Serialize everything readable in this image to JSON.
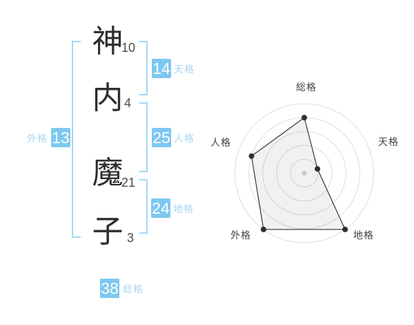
{
  "name": {
    "characters": [
      {
        "char": "神",
        "strokes": "10"
      },
      {
        "char": "内",
        "strokes": "4"
      },
      {
        "char": "魔",
        "strokes": "21"
      },
      {
        "char": "子",
        "strokes": "3"
      }
    ]
  },
  "badges": {
    "tenkaku": {
      "value": "14",
      "label": "天格"
    },
    "jinkaku": {
      "value": "25",
      "label": "人格"
    },
    "chikaku": {
      "value": "24",
      "label": "地格"
    },
    "gaikaku": {
      "value": "13",
      "label": "外格"
    },
    "soukaku": {
      "value": "38",
      "label": "総格"
    }
  },
  "colors": {
    "badge_bg": "#7dc8f1",
    "label_text": "#a9d6f5",
    "bracket": "#a4d7f3",
    "grid": "#dcdcdc",
    "polygon_stroke": "#333333",
    "point_fill": "#2e2e2e",
    "center_dot": "#c8c8c8",
    "axis_label": "#444444"
  },
  "chart_data": {
    "type": "radar",
    "title": "",
    "rings": 5,
    "grid": "circular-no-spokes",
    "has_center_dot": true,
    "start_angle_deg": -90,
    "direction": "clockwise",
    "axes": [
      {
        "label": "総格",
        "value": 38,
        "radius_fraction": 0.8
      },
      {
        "label": "天格",
        "value": 14,
        "radius_fraction": 0.2
      },
      {
        "label": "地格",
        "value": 24,
        "radius_fraction": 1.0
      },
      {
        "label": "外格",
        "value": 13,
        "radius_fraction": 1.0
      },
      {
        "label": "人格",
        "value": 25,
        "radius_fraction": 0.8
      }
    ]
  }
}
